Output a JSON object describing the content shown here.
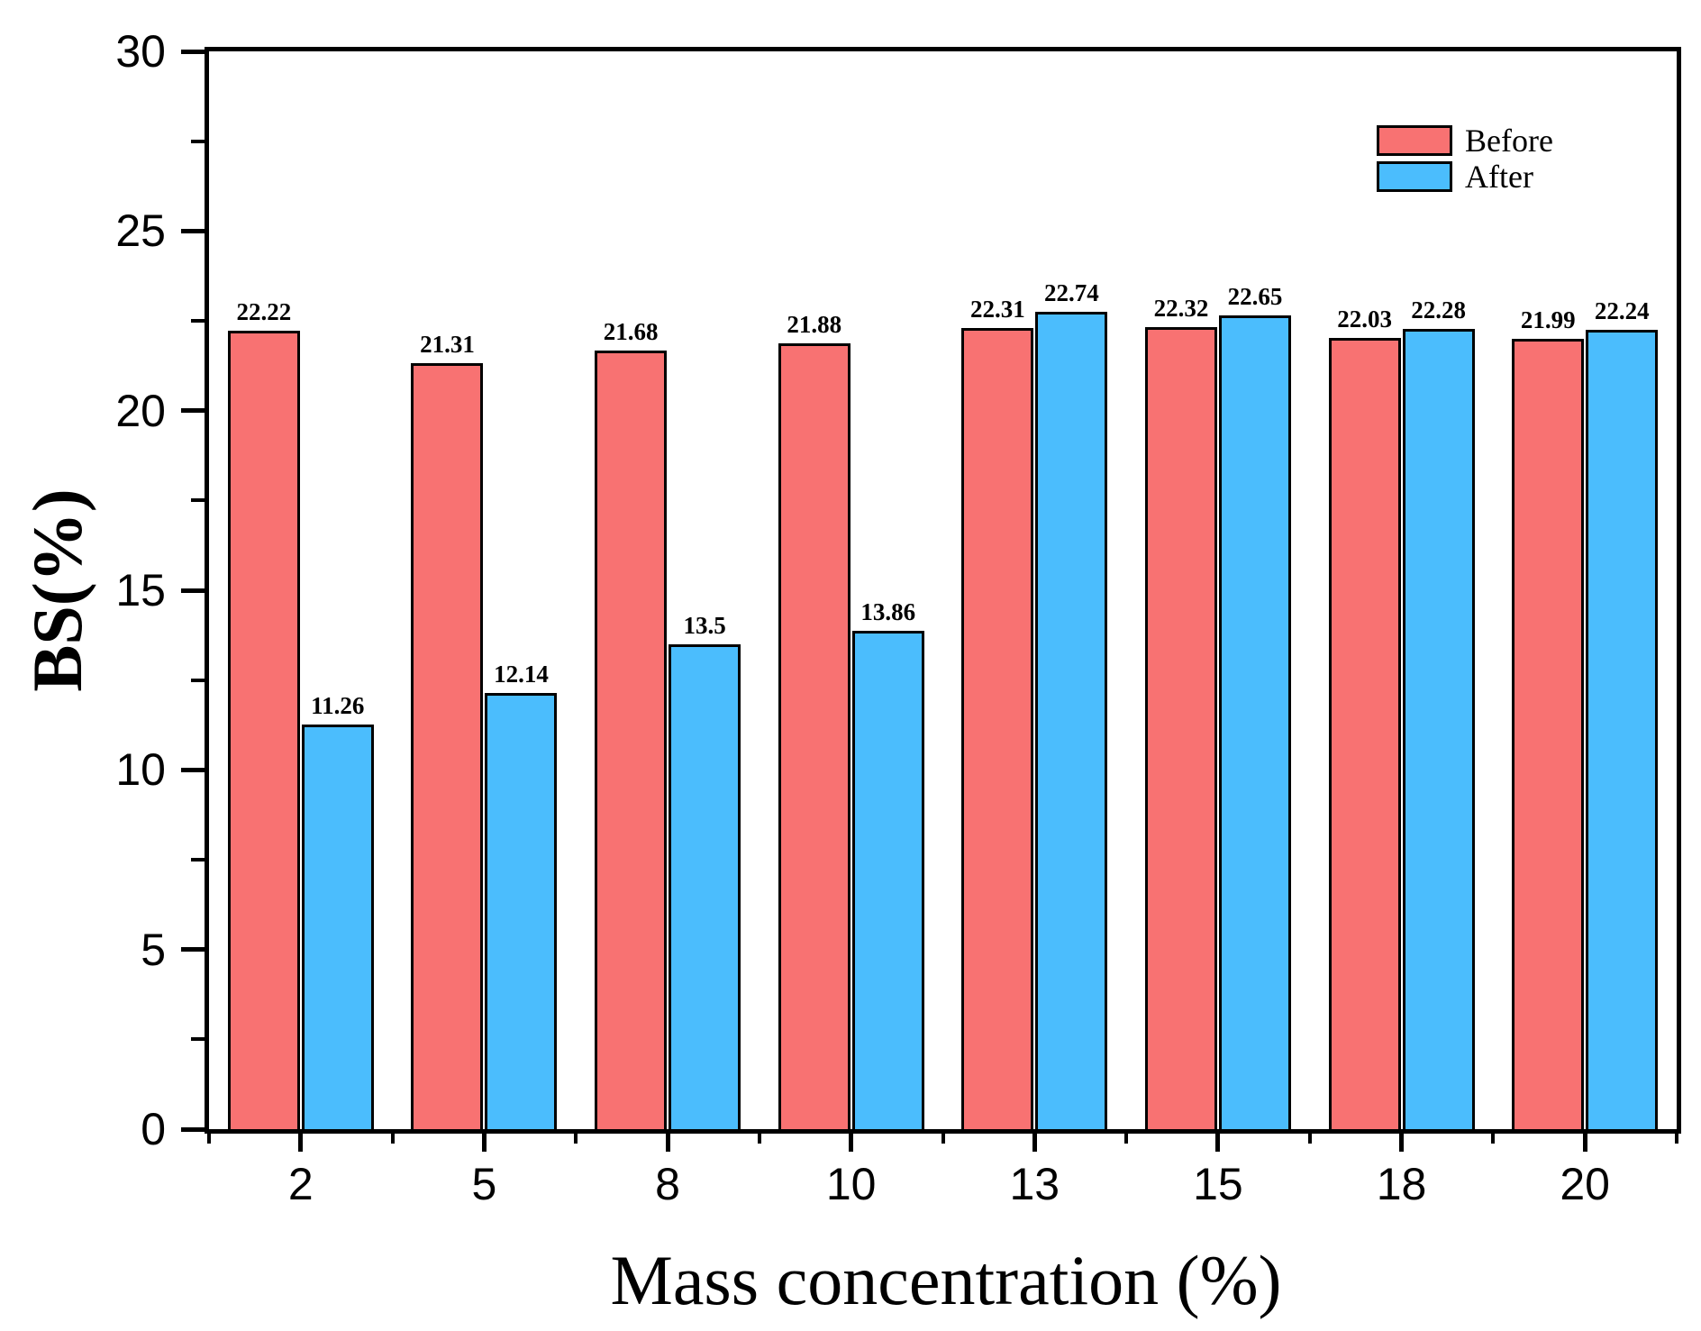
{
  "chart_data": {
    "type": "bar",
    "title": "",
    "xlabel": "Mass concentration (%)",
    "ylabel": "BS(%)",
    "categories": [
      "2",
      "5",
      "8",
      "10",
      "13",
      "15",
      "18",
      "20"
    ],
    "series": [
      {
        "name": "Before",
        "color": "#F87272",
        "values": [
          22.22,
          21.31,
          21.68,
          21.88,
          22.31,
          22.32,
          22.03,
          21.99
        ],
        "labels": [
          "22.22",
          "21.31",
          "21.68",
          "21.88",
          "22.31",
          "22.32",
          "22.03",
          "21.99"
        ]
      },
      {
        "name": "After",
        "color": "#4BBDFD",
        "values": [
          11.26,
          12.14,
          13.5,
          13.86,
          22.74,
          22.65,
          22.28,
          22.24
        ],
        "labels": [
          "11.26",
          "12.14",
          "13.5",
          "13.86",
          "22.74",
          "22.65",
          "22.28",
          "22.24"
        ]
      }
    ],
    "ylim": [
      0,
      30
    ],
    "y_major_ticks": [
      0,
      5,
      10,
      15,
      20,
      25,
      30
    ],
    "y_minor_ticks": [
      2.5,
      7.5,
      12.5,
      17.5,
      22.5,
      27.5
    ],
    "legend": {
      "position": "top-right",
      "entries": [
        "Before",
        "After"
      ]
    },
    "axis_color": "#000000",
    "bar_border_color": "#000000",
    "text_color": "#000000",
    "grid": "off",
    "value_labels": "above bars"
  }
}
